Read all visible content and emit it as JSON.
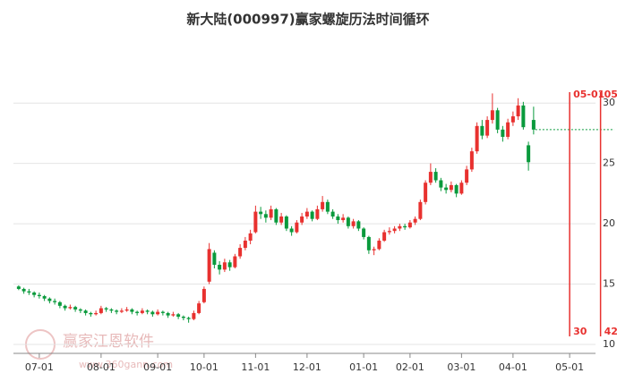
{
  "chart_data": {
    "type": "candlestick",
    "title": "新大陆(000997)赢家螺旋历法时间循环",
    "categories": [
      null,
      null,
      null,
      null,
      "07-01",
      null,
      null,
      null,
      null,
      null,
      null,
      null,
      null,
      null,
      null,
      null,
      "08-01",
      null,
      null,
      null,
      null,
      null,
      null,
      null,
      null,
      null,
      null,
      "09-01",
      null,
      null,
      null,
      null,
      null,
      null,
      null,
      null,
      "10-01",
      null,
      null,
      null,
      null,
      null,
      null,
      null,
      null,
      null,
      "11-01",
      null,
      null,
      null,
      null,
      null,
      null,
      null,
      null,
      null,
      "12-01",
      null,
      null,
      null,
      null,
      null,
      null,
      null,
      null,
      null,
      null,
      "01-01",
      null,
      null,
      null,
      null,
      null,
      null,
      null,
      null,
      "02-01",
      null,
      null,
      null,
      null,
      null,
      null,
      null,
      null,
      null,
      "03-01",
      null,
      null,
      null,
      null,
      null,
      null,
      null,
      null,
      null,
      "04-01",
      null,
      null,
      null,
      null,
      null,
      null,
      null,
      null,
      null,
      null,
      "05-01",
      null,
      null,
      null,
      null,
      null,
      null
    ],
    "open": [
      14.8,
      14.6,
      14.4,
      14.3,
      14.1,
      14.0,
      13.8,
      13.6,
      13.5,
      13.2,
      13.0,
      13.1,
      12.9,
      12.8,
      12.6,
      12.5,
      12.6,
      13.0,
      12.9,
      12.8,
      12.7,
      12.8,
      12.9,
      12.7,
      12.6,
      12.8,
      12.7,
      12.5,
      12.7,
      12.6,
      12.4,
      12.5,
      12.3,
      12.2,
      12.1,
      12.6,
      13.5,
      15.2,
      17.6,
      16.6,
      16.2,
      16.8,
      16.4,
      17.3,
      18.0,
      18.6,
      19.3,
      21.0,
      20.8,
      20.5,
      21.2,
      20.1,
      20.6,
      19.6,
      19.3,
      20.1,
      20.6,
      21.0,
      20.4,
      21.2,
      21.8,
      21.0,
      20.6,
      20.3,
      20.5,
      19.8,
      20.2,
      19.6,
      18.9,
      17.8,
      17.9,
      18.6,
      19.3,
      19.4,
      19.6,
      19.8,
      19.7,
      20.1,
      20.4,
      21.8,
      23.4,
      24.3,
      23.6,
      23.0,
      22.8,
      23.2,
      22.5,
      23.4,
      24.5,
      26.0,
      28.1,
      27.3,
      28.6,
      29.4,
      27.8,
      27.2,
      28.4,
      28.9,
      29.8,
      26.5,
      28.6,
      null,
      null,
      null,
      null,
      null,
      null,
      null,
      null,
      null,
      null,
      null,
      null,
      null
    ],
    "high": [
      14.9,
      14.7,
      14.6,
      14.4,
      14.3,
      14.1,
      13.9,
      13.8,
      13.6,
      13.3,
      13.3,
      13.2,
      13.0,
      12.9,
      12.7,
      12.8,
      13.2,
      13.1,
      13.0,
      12.9,
      13.0,
      13.1,
      13.0,
      12.8,
      13.0,
      12.9,
      12.8,
      12.9,
      12.8,
      12.7,
      12.7,
      12.6,
      12.4,
      12.3,
      12.8,
      13.6,
      14.8,
      18.4,
      17.8,
      16.9,
      17.1,
      17.0,
      17.5,
      18.3,
      18.9,
      19.5,
      21.5,
      21.4,
      21.1,
      21.5,
      21.3,
      20.9,
      20.7,
      19.8,
      20.3,
      20.9,
      21.3,
      21.1,
      21.5,
      22.3,
      22.0,
      21.2,
      20.8,
      20.8,
      20.6,
      20.4,
      20.3,
      19.7,
      19.0,
      18.1,
      18.8,
      19.5,
      19.7,
      19.8,
      20.0,
      20.0,
      20.3,
      20.6,
      22.0,
      23.6,
      25.0,
      24.6,
      23.8,
      23.3,
      23.5,
      23.3,
      23.6,
      24.8,
      26.3,
      28.4,
      28.6,
      28.9,
      30.8,
      29.6,
      28.1,
      28.7,
      29.3,
      30.4,
      30.1,
      26.8,
      29.7,
      null,
      null,
      null,
      null,
      null,
      null,
      null,
      null,
      null,
      null,
      null,
      null,
      null
    ],
    "low": [
      14.5,
      14.2,
      14.1,
      13.9,
      13.8,
      13.6,
      13.4,
      13.3,
      13.0,
      12.8,
      12.9,
      12.7,
      12.6,
      12.4,
      12.3,
      12.4,
      12.5,
      12.7,
      12.6,
      12.5,
      12.6,
      12.7,
      12.5,
      12.4,
      12.5,
      12.5,
      12.3,
      12.4,
      12.4,
      12.2,
      12.3,
      12.1,
      12.0,
      11.8,
      12.0,
      12.5,
      13.4,
      15.0,
      16.3,
      15.8,
      16.0,
      16.1,
      16.3,
      17.1,
      17.8,
      18.3,
      19.2,
      20.4,
      20.1,
      20.3,
      19.9,
      19.9,
      19.4,
      19.0,
      19.2,
      19.9,
      20.4,
      20.2,
      20.3,
      21.0,
      20.8,
      20.4,
      20.0,
      20.1,
      19.6,
      19.6,
      19.4,
      18.7,
      17.5,
      17.4,
      17.8,
      18.5,
      19.1,
      19.2,
      19.4,
      19.5,
      19.6,
      19.9,
      20.3,
      21.6,
      23.2,
      23.4,
      22.7,
      22.5,
      22.6,
      22.2,
      22.4,
      23.2,
      24.3,
      25.8,
      27.0,
      27.1,
      28.3,
      27.5,
      26.8,
      27.0,
      28.1,
      28.6,
      27.8,
      24.4,
      27.4,
      null,
      null,
      null,
      null,
      null,
      null,
      null,
      null,
      null,
      null,
      null,
      null,
      null
    ],
    "close": [
      14.6,
      14.4,
      14.3,
      14.1,
      14.0,
      13.8,
      13.6,
      13.5,
      13.2,
      13.0,
      13.1,
      12.9,
      12.8,
      12.6,
      12.5,
      12.6,
      13.0,
      12.9,
      12.8,
      12.7,
      12.8,
      12.9,
      12.7,
      12.6,
      12.8,
      12.7,
      12.5,
      12.7,
      12.6,
      12.4,
      12.5,
      12.3,
      12.2,
      12.1,
      12.6,
      13.4,
      14.6,
      17.9,
      16.6,
      16.2,
      16.8,
      16.4,
      17.3,
      18.0,
      18.6,
      19.2,
      21.0,
      20.8,
      20.5,
      21.2,
      20.1,
      20.6,
      19.6,
      19.3,
      20.1,
      20.6,
      21.0,
      20.4,
      21.2,
      21.8,
      21.0,
      20.6,
      20.3,
      20.5,
      19.8,
      20.2,
      19.6,
      18.9,
      17.8,
      17.9,
      18.6,
      19.3,
      19.4,
      19.6,
      19.8,
      19.7,
      20.1,
      20.4,
      21.8,
      23.4,
      24.3,
      23.6,
      23.0,
      22.8,
      23.2,
      22.5,
      23.4,
      24.5,
      26.0,
      28.1,
      27.3,
      28.6,
      29.4,
      27.8,
      27.2,
      28.4,
      28.9,
      29.8,
      28.0,
      25.1,
      27.8,
      null,
      null,
      null,
      null,
      null,
      null,
      null,
      null,
      null,
      null,
      null,
      null,
      null
    ],
    "up_color": "#e8312f",
    "down_color": "#0a9a3c",
    "ylim": [
      10,
      31.2
    ],
    "yticks": [
      10,
      15,
      20,
      25,
      30
    ],
    "grid": true,
    "cycle_lines": [
      {
        "label": "05-01",
        "days": 30
      },
      {
        "label": "05",
        "days": 42
      }
    ],
    "cycle_color": "#e8312f",
    "watermark": {
      "name": "赢家江恩软件",
      "url": "www.360gann.com"
    }
  }
}
